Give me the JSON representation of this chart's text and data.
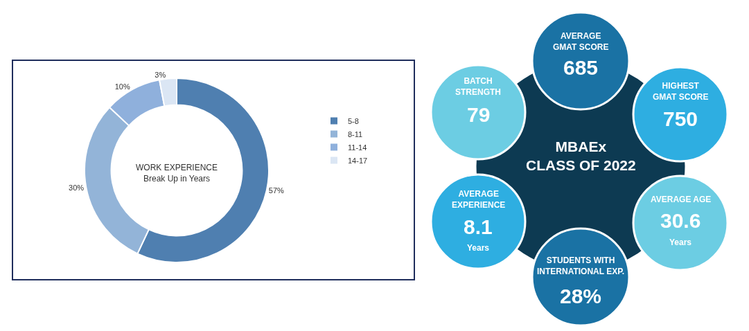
{
  "chart_data": [
    {
      "type": "donut",
      "title": "WORK EXPERIENCE\nBreak Up in Years",
      "categories": [
        "5-8",
        "8-11",
        "11-14",
        "14-17"
      ],
      "values": [
        57,
        30,
        10,
        3
      ],
      "value_labels": [
        "57%",
        "30%",
        "10%",
        "3%"
      ],
      "colors": [
        "#4f7fb0",
        "#93b4d8",
        "#8fb0dc",
        "#dbe6f4"
      ],
      "legend": "right"
    },
    {
      "type": "other",
      "title": "MBAEx\nCLASS OF 2022",
      "annotations": [
        "AVERAGE\nGMAT SCORE",
        "685",
        "HIGHEST\nGMAT SCORE",
        "750",
        "AVERAGE AGE",
        "30.6",
        "Years",
        "STUDENTS WITH\nINTERNATIONAL EXP.",
        "28%",
        "AVERAGE\nEXPERIENCE",
        "8.1",
        "Years",
        "BATCH\nSTRENGTH",
        "79"
      ]
    }
  ]
}
